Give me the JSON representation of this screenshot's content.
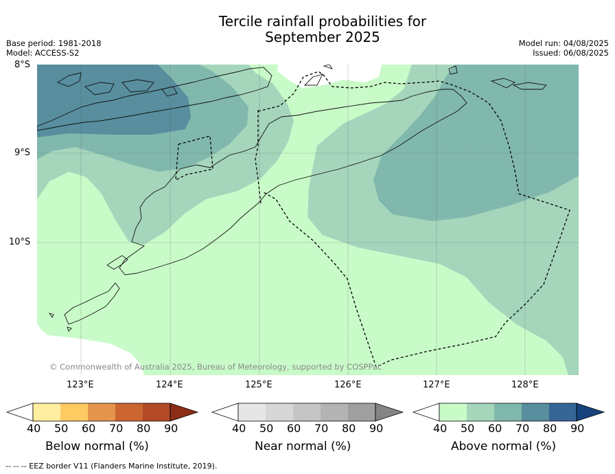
{
  "title": {
    "line1": "Tercile rainfall probabilities for",
    "line2": "September 2025"
  },
  "meta": {
    "base_period": "Base period: 1981-2018",
    "model": "Model: ACCESS-S2",
    "model_run": "Model run: 04/08/2025",
    "issued": "Issued: 06/08/2025"
  },
  "map": {
    "lat_labels": [
      "8°S",
      "9°S",
      "10°S"
    ],
    "lon_labels": [
      "123°E",
      "124°E",
      "125°E",
      "126°E",
      "127°E",
      "128°E"
    ],
    "copyright": "© Commonwealth of Australia 2025, Bureau of Meteorology, supported by COSPPac",
    "lat_range": [
      -11.5,
      -8.0
    ],
    "lon_range": [
      122.5,
      128.6
    ]
  },
  "colorbars": [
    {
      "name": "Below normal (%)",
      "ticks": [
        "40",
        "50",
        "60",
        "70",
        "80",
        "90"
      ],
      "colors": [
        "#ffffff",
        "#ffeda0",
        "#fecb62",
        "#e4944c",
        "#cc6631",
        "#b14a25",
        "#8c2d17"
      ]
    },
    {
      "name": "Near normal (%)",
      "ticks": [
        "40",
        "50",
        "60",
        "70",
        "80",
        "90"
      ],
      "colors": [
        "#ffffff",
        "#e6e6e6",
        "#d6d6d6",
        "#c5c5c5",
        "#b3b3b3",
        "#9f9f9f",
        "#848484"
      ]
    },
    {
      "name": "Above normal (%)",
      "ticks": [
        "40",
        "50",
        "60",
        "70",
        "80",
        "90"
      ],
      "colors": [
        "#ffffff",
        "#c9fbc9",
        "#a5d6bc",
        "#81b8ad",
        "#588e9e",
        "#366695",
        "#17437c"
      ]
    }
  ],
  "footer": "--  --  -- EEZ border V11 (Flanders Marine Institute, 2019)."
}
